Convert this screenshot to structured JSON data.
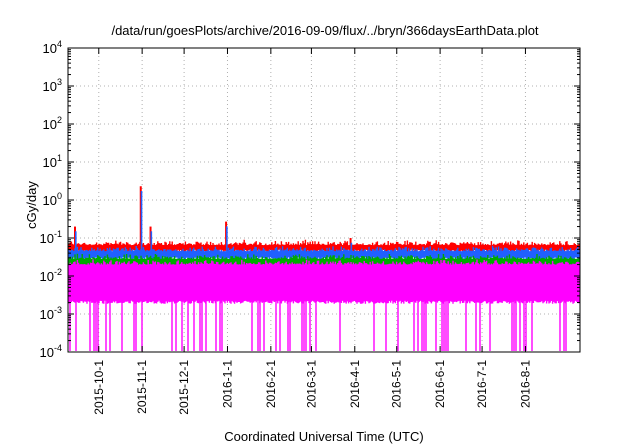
{
  "chart_data": {
    "type": "line",
    "title": "/data/run/goesPlots/archive/2016-09-09/flux/../bryn/366daysEarthData.plot",
    "xlabel": "Coordinated Universal Time (UTC)",
    "ylabel": "cGy/day",
    "yscale": "log",
    "ylim": [
      0.0001,
      10000
    ],
    "xlim": [
      "2015-09-09",
      "2016-09-09"
    ],
    "grid": true,
    "y_ticks": [
      {
        "base": "10",
        "exp": "-4",
        "value": 0.0001
      },
      {
        "base": "10",
        "exp": "-3",
        "value": 0.001
      },
      {
        "base": "10",
        "exp": "-2",
        "value": 0.01
      },
      {
        "base": "10",
        "exp": "-1",
        "value": 0.1
      },
      {
        "base": "10",
        "exp": "0",
        "value": 1
      },
      {
        "base": "10",
        "exp": "1",
        "value": 10
      },
      {
        "base": "10",
        "exp": "2",
        "value": 100
      },
      {
        "base": "10",
        "exp": "3",
        "value": 1000
      },
      {
        "base": "10",
        "exp": "4",
        "value": 10000
      }
    ],
    "x_ticks": [
      {
        "label": "2015-10-1",
        "date": "2015-10-01"
      },
      {
        "label": "2015-11-1",
        "date": "2015-11-01"
      },
      {
        "label": "2015-12-1",
        "date": "2015-12-01"
      },
      {
        "label": "2016-1-1",
        "date": "2016-01-01"
      },
      {
        "label": "2016-2-1",
        "date": "2016-02-01"
      },
      {
        "label": "2016-3-1",
        "date": "2016-03-01"
      },
      {
        "label": "2016-4-1",
        "date": "2016-04-01"
      },
      {
        "label": "2016-5-1",
        "date": "2016-05-01"
      },
      {
        "label": "2016-6-1",
        "date": "2016-06-01"
      },
      {
        "label": "2016-7-1",
        "date": "2016-07-01"
      },
      {
        "label": "2016-8-1",
        "date": "2016-08-01"
      }
    ],
    "series": [
      {
        "color": "#ff0000",
        "baseline": 0.055,
        "upper": 0.065
      },
      {
        "color": "#2060ff",
        "baseline": 0.035,
        "upper": 0.045
      },
      {
        "color": "#00aa00",
        "baseline": 0.022,
        "upper": 0.028
      },
      {
        "color": "#ff00ff",
        "baseline": 0.0025,
        "upper": 0.02,
        "dropout": 0.0001
      }
    ],
    "spikes": [
      {
        "date": "2015-09-14",
        "value": 0.2
      },
      {
        "date": "2015-10-31",
        "value": 2.3
      },
      {
        "date": "2015-11-07",
        "value": 0.2
      },
      {
        "date": "2015-12-31",
        "value": 0.27
      },
      {
        "date": "2016-03-29",
        "value": 0.1
      }
    ]
  }
}
